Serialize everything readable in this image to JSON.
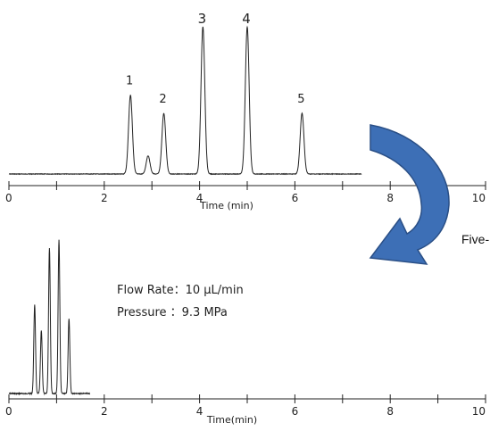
{
  "chart_data": [
    {
      "type": "line",
      "xlabel": "Time (min)",
      "xlim": [
        0,
        10
      ],
      "xticks": [
        0,
        2,
        4,
        6,
        8,
        10
      ],
      "peak_labels": [
        "1",
        "2",
        "3",
        "4",
        "5"
      ],
      "peaks": [
        {
          "label": "1",
          "x": 2.55,
          "y": 0.52
        },
        {
          "label": "",
          "x": 2.92,
          "y": 0.12
        },
        {
          "label": "2",
          "x": 3.25,
          "y": 0.4
        },
        {
          "label": "3",
          "x": 4.07,
          "y": 0.97
        },
        {
          "label": "4",
          "x": 5.0,
          "y": 0.97
        },
        {
          "label": "5",
          "x": 6.15,
          "y": 0.4
        }
      ],
      "x_range": [
        0.0,
        7.4
      ]
    },
    {
      "type": "line",
      "xlabel": "Time(min)",
      "xlim": [
        0,
        10
      ],
      "xticks": [
        0,
        2,
        4,
        6,
        8,
        10
      ],
      "peaks": [
        {
          "x": 0.54,
          "y": 0.58
        },
        {
          "x": 0.68,
          "y": 0.41
        },
        {
          "x": 0.85,
          "y": 0.95
        },
        {
          "x": 1.05,
          "y": 1.0
        },
        {
          "x": 1.26,
          "y": 0.49
        }
      ],
      "x_range": [
        0.0,
        1.7
      ]
    }
  ],
  "info": {
    "flow_rate": "Flow Rate：10 µL/min",
    "pressure": "Pressure  ：9.3 MPa"
  },
  "side_text": "Five-",
  "arrow_color": "#3d6fb6",
  "arrow_edge_color": "#2a4f86"
}
